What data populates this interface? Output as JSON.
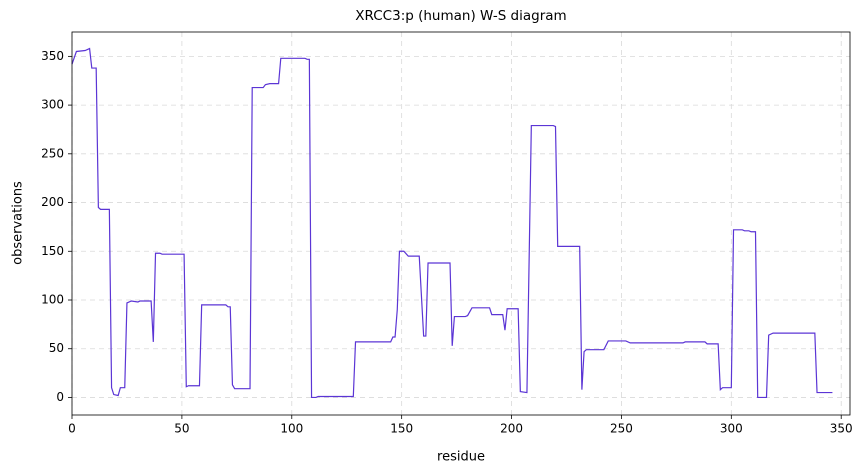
{
  "chart_data": {
    "type": "line",
    "title": "XRCC3:p (human) W-S diagram",
    "xlabel": "residue",
    "ylabel": "observations",
    "x": [
      0,
      2,
      6,
      8,
      9,
      11,
      12,
      13,
      17,
      18,
      19,
      21,
      22,
      24,
      25,
      27,
      30,
      31,
      36,
      37,
      38,
      40,
      41,
      51,
      52,
      53,
      58,
      59,
      70,
      71,
      72,
      73,
      74,
      81,
      82,
      87,
      88,
      90,
      94,
      95,
      106,
      107,
      108,
      109,
      111,
      112,
      128,
      129,
      145,
      146,
      147,
      148,
      149,
      151,
      153,
      158,
      160,
      161,
      162,
      172,
      173,
      174,
      179,
      180,
      182,
      190,
      191,
      196,
      197,
      198,
      203,
      204,
      207,
      209,
      219,
      220,
      221,
      231,
      232,
      233,
      234,
      242,
      244,
      252,
      254,
      278,
      279,
      288,
      289,
      294,
      295,
      296,
      300,
      301,
      305,
      306,
      308,
      309,
      311,
      312,
      316,
      317,
      319,
      320,
      338,
      339,
      346
    ],
    "series": [
      {
        "name": "observations",
        "color": "#5b35d5",
        "values": [
          342,
          355,
          356,
          358,
          338,
          338,
          195,
          193,
          193,
          10,
          3,
          2,
          10,
          10,
          97,
          99,
          98,
          99,
          99,
          57,
          148,
          148,
          147,
          147,
          11,
          12,
          12,
          95,
          95,
          93,
          93,
          13,
          9,
          9,
          318,
          318,
          321,
          322,
          322,
          348,
          348,
          347,
          347,
          0,
          0,
          1,
          1,
          57,
          57,
          62,
          62,
          90,
          150,
          150,
          145,
          145,
          63,
          63,
          138,
          138,
          53,
          83,
          83,
          84,
          92,
          92,
          85,
          85,
          69,
          91,
          91,
          6,
          5,
          279,
          279,
          278,
          155,
          155,
          8,
          47,
          49,
          49,
          58,
          58,
          56,
          56,
          57,
          57,
          55,
          55,
          8,
          10,
          10,
          172,
          172,
          171,
          171,
          170,
          170,
          0,
          0,
          64,
          66,
          66,
          66,
          5,
          5
        ]
      }
    ],
    "xlim": [
      0,
      354
    ],
    "xticks": [
      0,
      50,
      100,
      150,
      200,
      250,
      300,
      350
    ],
    "ylim": [
      -18,
      375
    ],
    "yticks": [
      0,
      50,
      100,
      150,
      200,
      250,
      300,
      350
    ],
    "grid": true
  }
}
